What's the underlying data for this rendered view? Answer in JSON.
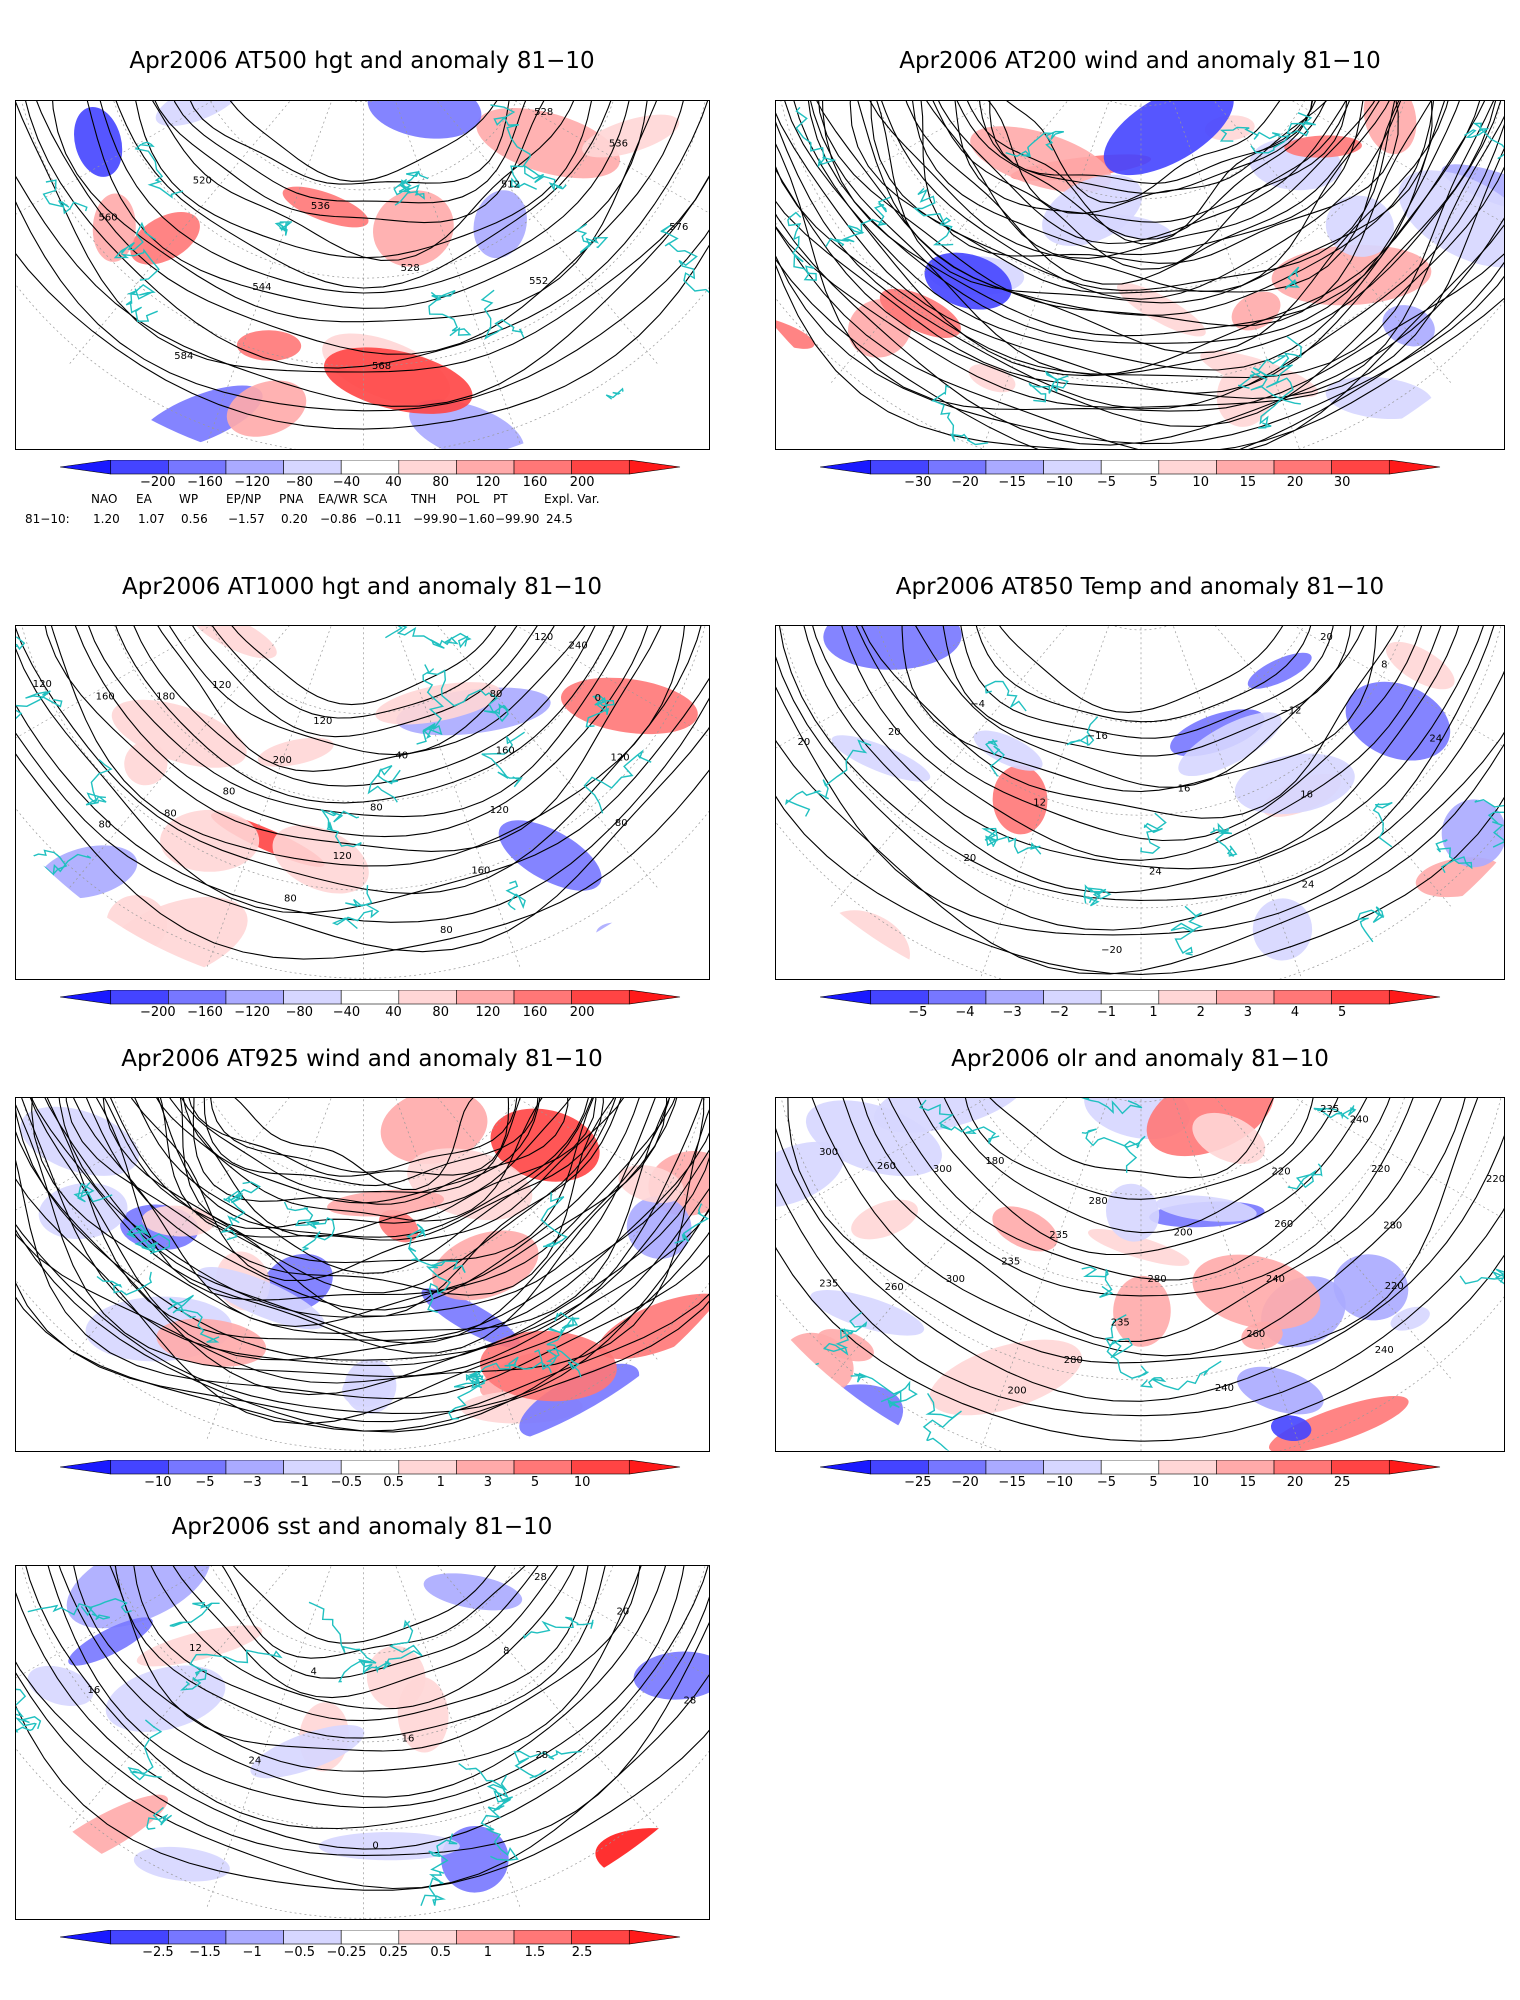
{
  "panels": [
    {
      "id": "p1",
      "title": "Apr2006 AT500 hgt and anomaly 81−10",
      "colorbar": [
        "−200",
        "−160",
        "−120",
        "−80",
        "−40",
        "40",
        "80",
        "120",
        "160",
        "200"
      ],
      "contour_labels": [
        "528",
        "536",
        "512",
        "520",
        "528",
        "536",
        "544",
        "552",
        "560",
        "568",
        "576",
        "584"
      ]
    },
    {
      "id": "p2",
      "title": "Apr2006 AT200 wind and anomaly 81−10",
      "colorbar": [
        "−30",
        "−20",
        "−15",
        "−10",
        "−5",
        "5",
        "10",
        "15",
        "20",
        "30"
      ],
      "contour_labels": []
    },
    {
      "id": "p3",
      "title": "Apr2006 AT1000 hgt and anomaly 81−10",
      "colorbar": [
        "−200",
        "−160",
        "−120",
        "−80",
        "−40",
        "40",
        "80",
        "120",
        "160",
        "200"
      ],
      "contour_labels": [
        "120",
        "120",
        "80",
        "120",
        "40",
        "240",
        "200",
        "160",
        "180",
        "80",
        "0",
        "80",
        "120",
        "160",
        "120",
        "120",
        "80",
        "160",
        "120",
        "80",
        "80",
        "80",
        "80"
      ]
    },
    {
      "id": "p4",
      "title": "Apr2006 AT850 Temp and anomaly 81−10",
      "colorbar": [
        "−5",
        "−4",
        "−3",
        "−2",
        "−1",
        "1",
        "2",
        "3",
        "4",
        "5"
      ],
      "contour_labels": [
        "20",
        "−16",
        "−12",
        "−4",
        "16",
        "8",
        "12",
        "16",
        "20",
        "24",
        "24",
        "20",
        "24",
        "20",
        "−20"
      ]
    },
    {
      "id": "p5",
      "title": "Apr2006 AT925 wind and anomaly 81−10",
      "colorbar": [
        "−10",
        "−5",
        "−3",
        "−1",
        "−0.5",
        "0.5",
        "1",
        "3",
        "5",
        "10"
      ],
      "contour_labels": []
    },
    {
      "id": "p6",
      "title": "Apr2006 olr and anomaly 81−10",
      "colorbar": [
        "−25",
        "−20",
        "−15",
        "−10",
        "−5",
        "5",
        "10",
        "15",
        "20",
        "25"
      ],
      "contour_labels": [
        "235",
        "280",
        "220",
        "180",
        "200",
        "240",
        "235",
        "260",
        "300",
        "280",
        "220",
        "235",
        "240",
        "260",
        "235",
        "280",
        "300",
        "260",
        "300",
        "280",
        "220",
        "260",
        "240",
        "220",
        "200",
        "240",
        "235"
      ]
    },
    {
      "id": "p7",
      "title": "Apr2006 sst and anomaly 81−10",
      "colorbar": [
        "−2.5",
        "−1.5",
        "−1",
        "−0.5",
        "−0.25",
        "0.25",
        "0.5",
        "1",
        "1.5",
        "2.5"
      ],
      "contour_labels": [
        "28",
        "4",
        "8",
        "12",
        "16",
        "20",
        "24",
        "28",
        "16",
        "0",
        "28"
      ]
    }
  ],
  "teleconnection": {
    "headers": [
      "NAO",
      "EA",
      "WP",
      "EP/NP",
      "PNA",
      "EA/WR",
      "SCA",
      "TNH",
      "POL",
      "PT",
      "Expl. Var."
    ],
    "row_label": "81−10:",
    "values": [
      "1.20",
      "1.07",
      "0.56",
      "−1.57",
      "0.20",
      "−0.86",
      "−0.11",
      "−99.90",
      "−1.60",
      "−99.90",
      "24.5"
    ]
  },
  "colors": {
    "coast": "#20c0c0",
    "reds": [
      "#ffd6d6",
      "#ffaaaa",
      "#ff7777",
      "#ff4444",
      "#ff1a1a"
    ],
    "blues": [
      "#d6d6ff",
      "#aaaaff",
      "#7777ff",
      "#4444ff",
      "#1a1aff"
    ]
  }
}
